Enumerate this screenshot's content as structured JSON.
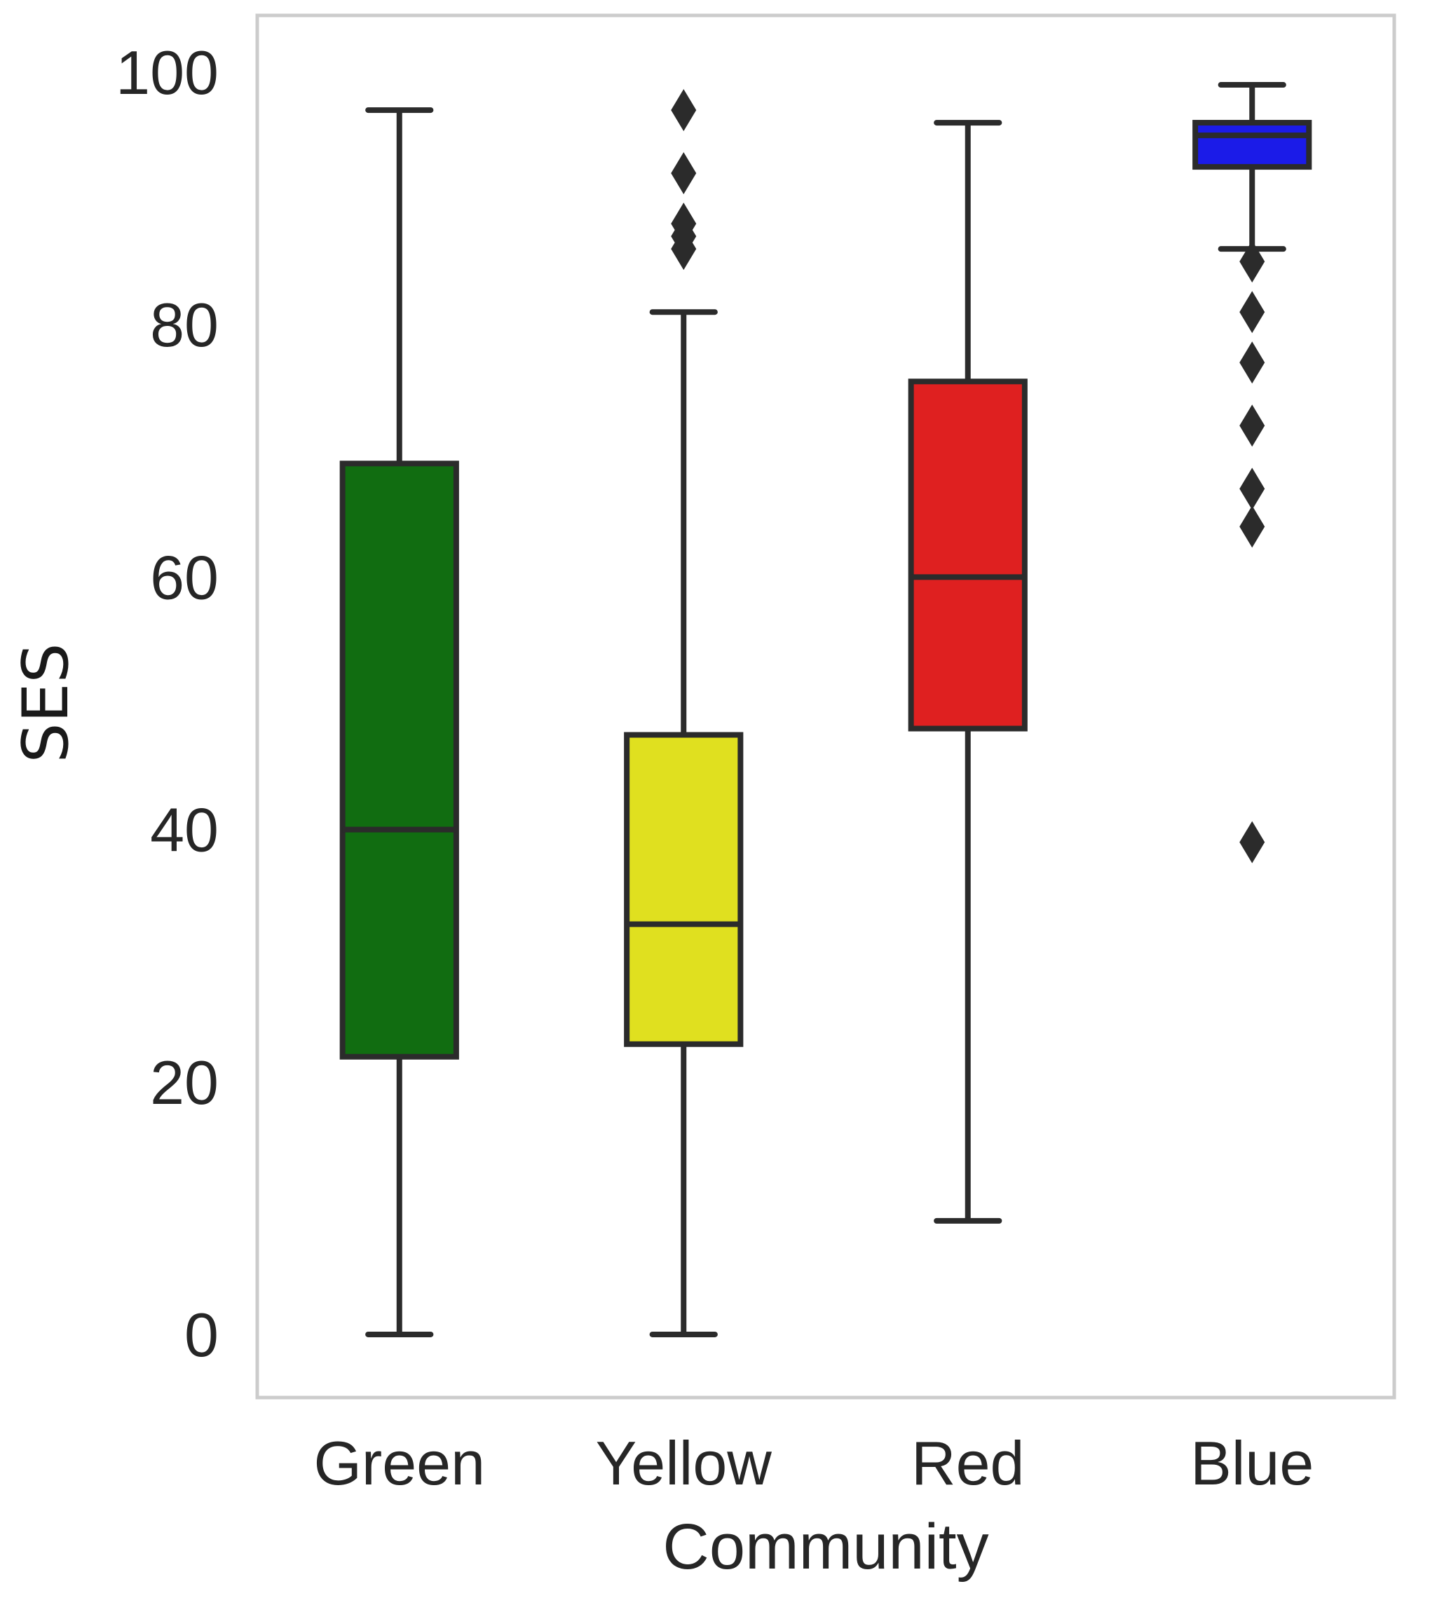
{
  "chart_data": {
    "type": "box",
    "xlabel": "Community",
    "ylabel": "SES",
    "ylim": [
      -5,
      104.5
    ],
    "yticks": [
      0,
      20,
      40,
      60,
      80,
      100
    ],
    "ytick_labels": [
      "0",
      "20",
      "40",
      "60",
      "80",
      "100"
    ],
    "grid": false,
    "categories": [
      "Green",
      "Yellow",
      "Red",
      "Blue"
    ],
    "series": [
      {
        "category": "Green",
        "color": "#116d11",
        "whisker_low": 0,
        "q1": 22,
        "median": 40,
        "q3": 69,
        "whisker_high": 97,
        "outliers": []
      },
      {
        "category": "Yellow",
        "color": "#e0e01f",
        "whisker_low": 0,
        "q1": 23,
        "median": 32.5,
        "q3": 47.5,
        "whisker_high": 81,
        "outliers": [
          97,
          92,
          88,
          87,
          86
        ]
      },
      {
        "category": "Red",
        "color": "#df2020",
        "whisker_low": 9,
        "q1": 48,
        "median": 60,
        "q3": 75.5,
        "whisker_high": 96,
        "outliers": []
      },
      {
        "category": "Blue",
        "color": "#1b1be8",
        "whisker_low": 86,
        "q1": 92.5,
        "median": 95,
        "q3": 96,
        "whisker_high": 99,
        "outliers": [
          85,
          81,
          77,
          72,
          67,
          64,
          39
        ]
      }
    ],
    "frame_color": "#cccccc",
    "line_color": "#2b2b2b"
  }
}
